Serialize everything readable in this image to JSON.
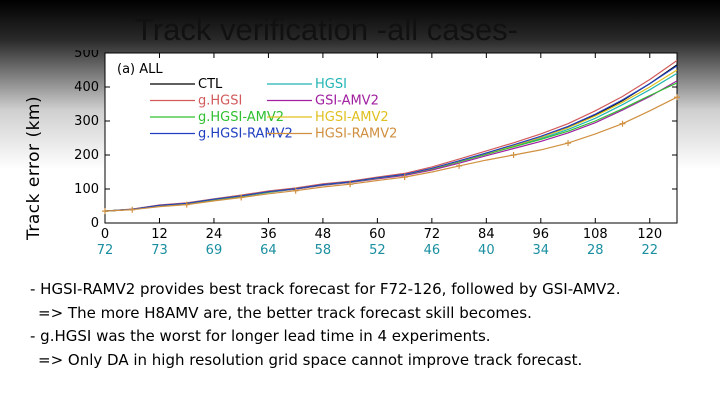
{
  "slide": {
    "title": "Track verification -all cases-",
    "bullets": [
      "- HGSI-RAMV2 provides best track forecast for F72-126, followed by GSI-AMV2.",
      "=> The more H8AMV are, the better track forecast skill becomes.",
      "- g.HGSI was the worst for longer lead time in 4 experiments.",
      "=> Only DA in high resolution grid space cannot improve track forecast."
    ]
  },
  "chart_data": {
    "type": "line",
    "title": "Track verification -all cases-",
    "panel_label": "(a) ALL",
    "xlabel": "",
    "ylabel": "Track error (km)",
    "xlim": [
      0,
      126
    ],
    "ylim": [
      0,
      500
    ],
    "x_ticks": [
      0,
      12,
      24,
      36,
      48,
      60,
      72,
      84,
      96,
      108,
      120
    ],
    "y_ticks": [
      0,
      100,
      200,
      300,
      400,
      500
    ],
    "case_counts": [
      "72",
      "73",
      "69",
      "64",
      "58",
      "52",
      "46",
      "40",
      "34",
      "28",
      "22"
    ],
    "x": [
      0,
      6,
      12,
      18,
      24,
      30,
      36,
      42,
      48,
      54,
      60,
      66,
      72,
      78,
      84,
      90,
      96,
      102,
      108,
      114,
      120,
      126
    ],
    "series": [
      {
        "name": "CTL",
        "color": "#000000",
        "values": [
          35,
          40,
          52,
          58,
          70,
          80,
          92,
          100,
          112,
          120,
          132,
          142,
          160,
          182,
          205,
          228,
          252,
          282,
          318,
          360,
          410,
          465
        ]
      },
      {
        "name": "HGSI",
        "color": "#22b4b4",
        "values": [
          35,
          40,
          50,
          56,
          68,
          78,
          90,
          100,
          112,
          120,
          132,
          142,
          158,
          180,
          203,
          225,
          248,
          275,
          308,
          348,
          392,
          440
        ]
      },
      {
        "name": "g.HGSI",
        "color": "#d25a5a",
        "values": [
          35,
          41,
          53,
          59,
          71,
          82,
          94,
          103,
          115,
          123,
          135,
          146,
          165,
          188,
          212,
          236,
          262,
          292,
          330,
          372,
          422,
          478
        ]
      },
      {
        "name": "GSI-AMV2",
        "color": "#a020a0",
        "values": [
          35,
          40,
          51,
          57,
          69,
          79,
          91,
          100,
          111,
          119,
          130,
          140,
          156,
          176,
          198,
          219,
          240,
          265,
          295,
          332,
          372,
          418
        ]
      },
      {
        "name": "g.HGSI-AMV2",
        "color": "#30c030",
        "values": [
          35,
          40,
          51,
          57,
          69,
          79,
          91,
          101,
          112,
          120,
          132,
          142,
          159,
          180,
          202,
          224,
          246,
          270,
          300,
          336,
          375,
          412
        ]
      },
      {
        "name": "HGSI-AMV2",
        "color": "#e0c020",
        "values": [
          35,
          40,
          51,
          58,
          70,
          80,
          92,
          101,
          113,
          121,
          133,
          143,
          160,
          182,
          205,
          228,
          252,
          280,
          315,
          355,
          400,
          450
        ]
      },
      {
        "name": "g.HGSI-RAMV2",
        "color": "#2040c0",
        "values": [
          35,
          40,
          52,
          58,
          70,
          80,
          92,
          101,
          113,
          121,
          133,
          143,
          161,
          183,
          206,
          230,
          255,
          284,
          320,
          362,
          410,
          462
        ]
      },
      {
        "name": "HGSI-RAMV2",
        "color": "#d09040",
        "markers": true,
        "values": [
          35,
          39,
          48,
          54,
          65,
          75,
          86,
          95,
          106,
          114,
          125,
          135,
          150,
          168,
          185,
          200,
          215,
          235,
          262,
          292,
          330,
          370
        ]
      }
    ]
  }
}
